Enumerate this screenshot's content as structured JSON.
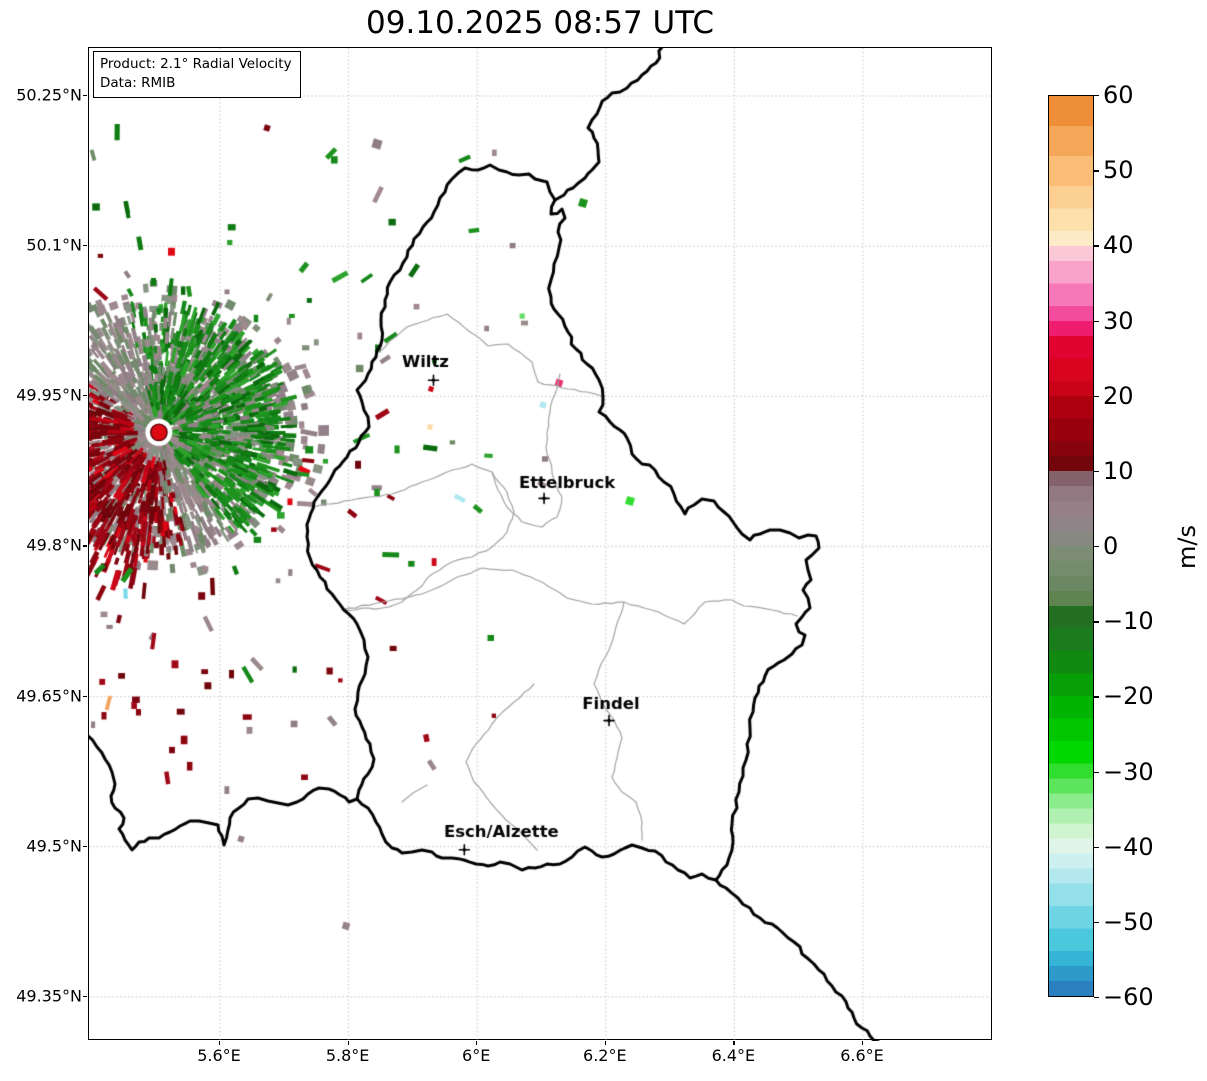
{
  "title": "09.10.2025 08:57 UTC",
  "product_box": {
    "product_line": "Product: 2.1° Radial Velocity",
    "data_line": "Data: RMIB"
  },
  "axes": {
    "x_ticks": [
      {
        "lon": 5.6,
        "label": "5.6°E"
      },
      {
        "lon": 5.8,
        "label": "5.8°E"
      },
      {
        "lon": 6.0,
        "label": "6°E"
      },
      {
        "lon": 6.2,
        "label": "6.2°E"
      },
      {
        "lon": 6.4,
        "label": "6.4°E"
      },
      {
        "lon": 6.6,
        "label": "6.6°E"
      }
    ],
    "y_ticks": [
      {
        "lat": 50.25,
        "label": "50.25°N"
      },
      {
        "lat": 50.1,
        "label": "50.1°N"
      },
      {
        "lat": 49.95,
        "label": "49.95°N"
      },
      {
        "lat": 49.8,
        "label": "49.8°N"
      },
      {
        "lat": 49.65,
        "label": "49.65°N"
      },
      {
        "lat": 49.5,
        "label": "49.5°N"
      },
      {
        "lat": 49.35,
        "label": "49.35°N"
      }
    ],
    "lon_range": [
      5.396,
      6.802
    ],
    "lat_range": [
      49.306,
      50.298
    ],
    "grid": "dotted"
  },
  "colorbar": {
    "label": "m/s",
    "range": [
      -60,
      60
    ],
    "ticks": [
      {
        "v": 60,
        "label": "60"
      },
      {
        "v": 50,
        "label": "50"
      },
      {
        "v": 40,
        "label": "40"
      },
      {
        "v": 30,
        "label": "30"
      },
      {
        "v": 20,
        "label": "20"
      },
      {
        "v": 10,
        "label": "10"
      },
      {
        "v": 0,
        "label": "0"
      },
      {
        "v": -10,
        "label": "−10"
      },
      {
        "v": -20,
        "label": "−20"
      },
      {
        "v": -30,
        "label": "−30"
      },
      {
        "v": -40,
        "label": "−40"
      },
      {
        "v": -50,
        "label": "−50"
      },
      {
        "v": -60,
        "label": "−60"
      }
    ],
    "stops": [
      {
        "v": 60,
        "c": "#ef8e38"
      },
      {
        "v": 56,
        "c": "#f5a658"
      },
      {
        "v": 52,
        "c": "#f9bd78"
      },
      {
        "v": 48,
        "c": "#fccf92"
      },
      {
        "v": 45,
        "c": "#fde0ac"
      },
      {
        "v": 42,
        "c": "#fdeac6"
      },
      {
        "v": 40,
        "c": "#fbc8d8"
      },
      {
        "v": 38,
        "c": "#f9a3cb"
      },
      {
        "v": 35,
        "c": "#f678b8"
      },
      {
        "v": 32,
        "c": "#f34b9d"
      },
      {
        "v": 30,
        "c": "#ee1d70"
      },
      {
        "v": 28,
        "c": "#e20430"
      },
      {
        "v": 25,
        "c": "#d90420"
      },
      {
        "v": 22,
        "c": "#cb0318"
      },
      {
        "v": 20,
        "c": "#ad0010"
      },
      {
        "v": 17,
        "c": "#99000d"
      },
      {
        "v": 14,
        "c": "#86030c"
      },
      {
        "v": 12,
        "c": "#73060c"
      },
      {
        "v": 10,
        "c": "#84626c"
      },
      {
        "v": 8,
        "c": "#927881"
      },
      {
        "v": 6,
        "c": "#958088"
      },
      {
        "v": 4,
        "c": "#908489"
      },
      {
        "v": 2,
        "c": "#878880"
      },
      {
        "v": 0,
        "c": "#7d8d75"
      },
      {
        "v": -2,
        "c": "#748b6c"
      },
      {
        "v": -4,
        "c": "#6b8862"
      },
      {
        "v": -6,
        "c": "#5f844f"
      },
      {
        "v": -8,
        "c": "#237023"
      },
      {
        "v": -11,
        "c": "#1b7c1b"
      },
      {
        "v": -14,
        "c": "#128a12"
      },
      {
        "v": -17,
        "c": "#089e08"
      },
      {
        "v": -20,
        "c": "#02b402"
      },
      {
        "v": -23,
        "c": "#00c600"
      },
      {
        "v": -26,
        "c": "#00d800"
      },
      {
        "v": -29,
        "c": "#30de30"
      },
      {
        "v": -31,
        "c": "#5ce45c"
      },
      {
        "v": -33,
        "c": "#8aec8a"
      },
      {
        "v": -35,
        "c": "#b0f0b0"
      },
      {
        "v": -37,
        "c": "#cff4cf"
      },
      {
        "v": -39,
        "c": "#e0f4ea"
      },
      {
        "v": -41,
        "c": "#cdeff0"
      },
      {
        "v": -43,
        "c": "#b2e8ee"
      },
      {
        "v": -45,
        "c": "#93e0ea"
      },
      {
        "v": -48,
        "c": "#6fd5e4"
      },
      {
        "v": -51,
        "c": "#4cc8dd"
      },
      {
        "v": -54,
        "c": "#35b4d6"
      },
      {
        "v": -56,
        "c": "#2e9aca"
      },
      {
        "v": -58,
        "c": "#2b80c0"
      },
      {
        "v": -60,
        "c": "#2b80c0"
      }
    ]
  },
  "map": {
    "cities": [
      {
        "name": "Wiltz",
        "lon": 5.932,
        "lat": 49.966
      },
      {
        "name": "Ettelbruck",
        "lon": 6.104,
        "lat": 49.848
      },
      {
        "name": "Findel",
        "lon": 6.205,
        "lat": 49.626
      },
      {
        "name": "Esch/Alzette",
        "lon": 5.98,
        "lat": 49.497
      }
    ],
    "radar_site": {
      "lon": 5.505,
      "lat": 49.914,
      "marker_color": "#dd0a14"
    },
    "border_color": "#000000",
    "district_border_color": "#a3a3a3",
    "grid_color": "#b5b5b5",
    "radar_palette": {
      "mauve": [
        "#9b878c",
        "#93818a",
        "#a0898f",
        "#8f7d84",
        "#998a8b"
      ],
      "gray_green": [
        "#7f8e7a",
        "#748a70",
        "#879484",
        "#6d8a66"
      ],
      "dark_red": [
        "#8c0410",
        "#7c040e",
        "#a00716",
        "#6f050b"
      ],
      "red": [
        "#cc0718",
        "#e00715",
        "#b50313"
      ],
      "green": [
        "#0f7c12",
        "#1d921d",
        "#2da32d",
        "#0a6b0d",
        "#16881a"
      ],
      "bright_green": [
        "#22c822",
        "#33dd33"
      ],
      "rare": [
        "#f2a45f",
        "#ffd9a6",
        "#7adce8",
        "#aee8f0",
        "#e8336a",
        "#66dd66"
      ]
    }
  }
}
